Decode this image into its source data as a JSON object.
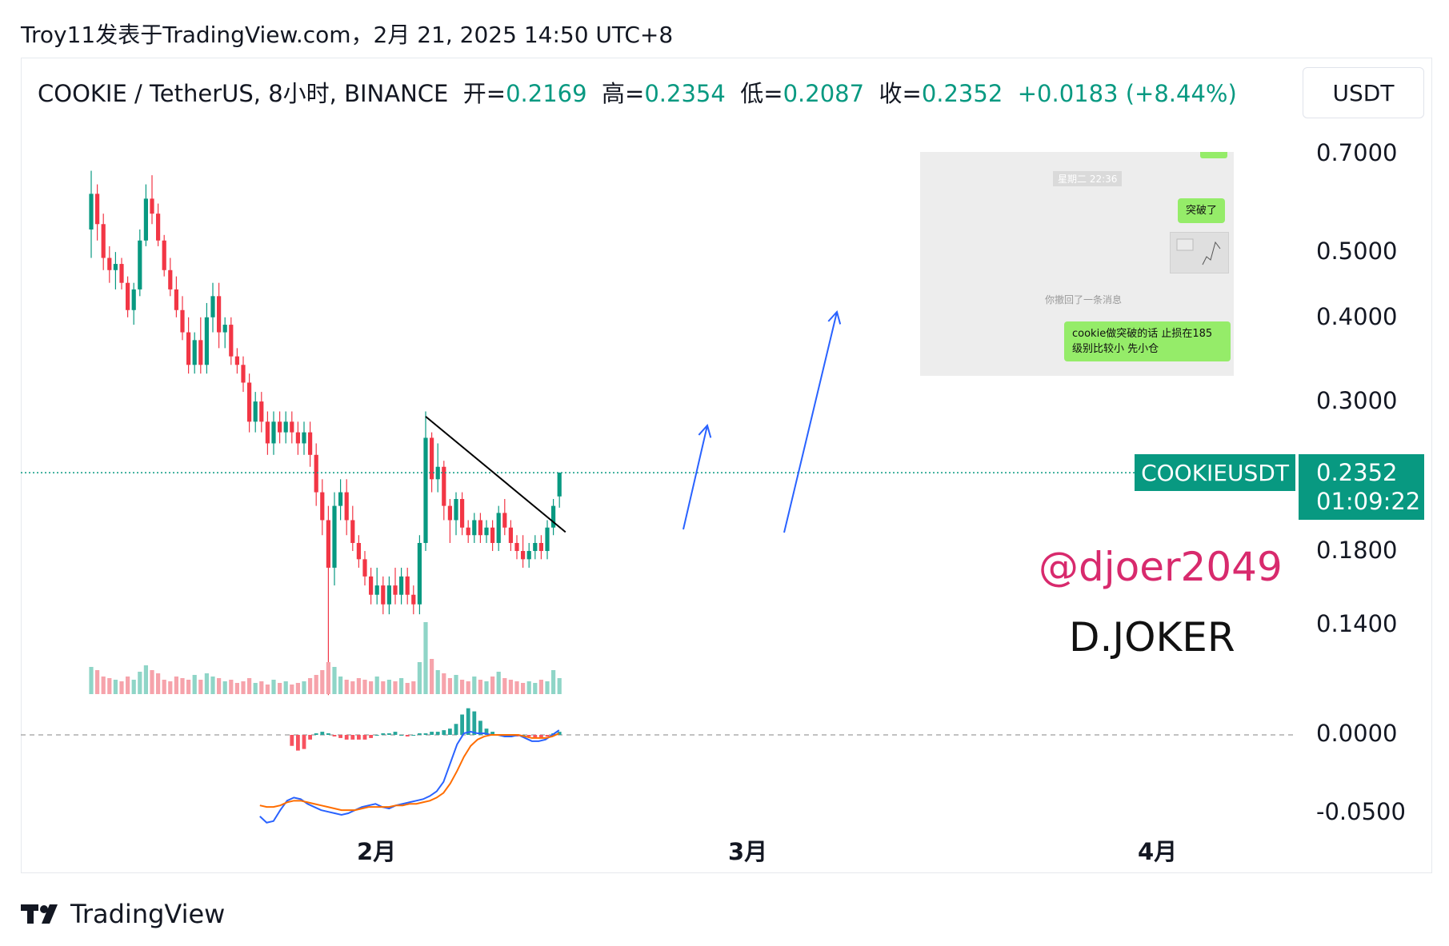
{
  "header": {
    "text": "Troy11发表于TradingView.com，2月 21, 2025 14:50 UTC+8"
  },
  "ohlc": {
    "symbol_text": "COOKIE / TetherUS, 8小时, BINANCE",
    "open_label": "开=",
    "open": "0.2169",
    "high_label": "高=",
    "high": "0.2354",
    "low_label": "低=",
    "low": "0.2087",
    "close_label": "收=",
    "close": "0.2352",
    "change": "+0.0183 (+8.44%)"
  },
  "currency_button": "USDT",
  "symbol_tag": "COOKIEUSDT",
  "price_tag": {
    "price": "0.2352",
    "countdown": "01:09:22"
  },
  "chat": {
    "time": "星期二 22:36",
    "bubble1": "突破了",
    "recall_notice": "你撤回了一条消息",
    "bubble2_line1": "cookie做突破的话 止损在185",
    "bubble2_line2": "级别比较小 先小仓"
  },
  "watermark": {
    "handle": "@djoer2049",
    "name": "D.JOKER"
  },
  "footer": {
    "brand": "TradingView"
  },
  "colors": {
    "up": "#089981",
    "down": "#f23645",
    "macd": "#2962ff",
    "signal": "#ff6d00",
    "handle": "#d82a6d"
  },
  "icons": {
    "logo": "tradingview-logo-icon"
  },
  "chart_data": {
    "type": "candlestick",
    "scale": "log",
    "ylim": [
      0.07,
      0.73
    ],
    "y_ticks": [
      "0.7000",
      "0.5000",
      "0.4000",
      "0.3000",
      "0.1800",
      "0.1400"
    ],
    "x_ticks": [
      "2月",
      "3月",
      "4月"
    ],
    "macd_ticks": [
      "0.0000",
      "-0.0500"
    ],
    "last_price": 0.2352,
    "candles": [
      [
        0.54,
        0.66,
        0.49,
        0.61
      ],
      [
        0.61,
        0.63,
        0.52,
        0.55
      ],
      [
        0.55,
        0.57,
        0.47,
        0.49
      ],
      [
        0.49,
        0.51,
        0.45,
        0.47
      ],
      [
        0.47,
        0.5,
        0.44,
        0.48
      ],
      [
        0.48,
        0.49,
        0.44,
        0.45
      ],
      [
        0.45,
        0.46,
        0.4,
        0.41
      ],
      [
        0.41,
        0.45,
        0.39,
        0.44
      ],
      [
        0.44,
        0.54,
        0.43,
        0.52
      ],
      [
        0.52,
        0.63,
        0.51,
        0.6
      ],
      [
        0.6,
        0.65,
        0.55,
        0.57
      ],
      [
        0.57,
        0.59,
        0.51,
        0.52
      ],
      [
        0.52,
        0.53,
        0.46,
        0.47
      ],
      [
        0.47,
        0.49,
        0.43,
        0.44
      ],
      [
        0.44,
        0.46,
        0.4,
        0.41
      ],
      [
        0.41,
        0.43,
        0.37,
        0.38
      ],
      [
        0.38,
        0.4,
        0.33,
        0.34
      ],
      [
        0.34,
        0.38,
        0.33,
        0.37
      ],
      [
        0.37,
        0.4,
        0.33,
        0.34
      ],
      [
        0.34,
        0.42,
        0.33,
        0.4
      ],
      [
        0.4,
        0.45,
        0.38,
        0.43
      ],
      [
        0.43,
        0.45,
        0.36,
        0.38
      ],
      [
        0.38,
        0.4,
        0.36,
        0.39
      ],
      [
        0.39,
        0.4,
        0.34,
        0.35
      ],
      [
        0.35,
        0.36,
        0.33,
        0.34
      ],
      [
        0.34,
        0.35,
        0.31,
        0.32
      ],
      [
        0.32,
        0.33,
        0.27,
        0.28
      ],
      [
        0.28,
        0.31,
        0.27,
        0.3
      ],
      [
        0.3,
        0.31,
        0.27,
        0.28
      ],
      [
        0.28,
        0.29,
        0.25,
        0.26
      ],
      [
        0.26,
        0.29,
        0.25,
        0.28
      ],
      [
        0.28,
        0.29,
        0.26,
        0.27
      ],
      [
        0.27,
        0.29,
        0.26,
        0.28
      ],
      [
        0.28,
        0.29,
        0.26,
        0.27
      ],
      [
        0.27,
        0.28,
        0.25,
        0.26
      ],
      [
        0.26,
        0.28,
        0.25,
        0.27
      ],
      [
        0.27,
        0.28,
        0.24,
        0.25
      ],
      [
        0.25,
        0.26,
        0.21,
        0.22
      ],
      [
        0.22,
        0.23,
        0.19,
        0.2
      ],
      [
        0.2,
        0.21,
        0.11,
        0.17
      ],
      [
        0.17,
        0.22,
        0.16,
        0.21
      ],
      [
        0.21,
        0.23,
        0.2,
        0.22
      ],
      [
        0.22,
        0.23,
        0.19,
        0.2
      ],
      [
        0.2,
        0.21,
        0.18,
        0.185
      ],
      [
        0.185,
        0.19,
        0.17,
        0.175
      ],
      [
        0.175,
        0.18,
        0.16,
        0.165
      ],
      [
        0.165,
        0.17,
        0.15,
        0.155
      ],
      [
        0.155,
        0.17,
        0.15,
        0.16
      ],
      [
        0.16,
        0.165,
        0.145,
        0.15
      ],
      [
        0.15,
        0.165,
        0.145,
        0.16
      ],
      [
        0.16,
        0.17,
        0.15,
        0.155
      ],
      [
        0.155,
        0.17,
        0.15,
        0.165
      ],
      [
        0.165,
        0.17,
        0.15,
        0.155
      ],
      [
        0.155,
        0.16,
        0.145,
        0.15
      ],
      [
        0.15,
        0.19,
        0.145,
        0.185
      ],
      [
        0.185,
        0.29,
        0.18,
        0.265
      ],
      [
        0.265,
        0.27,
        0.22,
        0.23
      ],
      [
        0.23,
        0.26,
        0.22,
        0.24
      ],
      [
        0.24,
        0.245,
        0.2,
        0.21
      ],
      [
        0.21,
        0.215,
        0.185,
        0.2
      ],
      [
        0.2,
        0.22,
        0.19,
        0.215
      ],
      [
        0.215,
        0.22,
        0.19,
        0.195
      ],
      [
        0.195,
        0.2,
        0.185,
        0.19
      ],
      [
        0.19,
        0.205,
        0.185,
        0.2
      ],
      [
        0.2,
        0.205,
        0.185,
        0.19
      ],
      [
        0.19,
        0.2,
        0.185,
        0.195
      ],
      [
        0.195,
        0.2,
        0.18,
        0.185
      ],
      [
        0.185,
        0.21,
        0.18,
        0.205
      ],
      [
        0.205,
        0.215,
        0.19,
        0.195
      ],
      [
        0.195,
        0.2,
        0.18,
        0.185
      ],
      [
        0.185,
        0.19,
        0.175,
        0.18
      ],
      [
        0.18,
        0.19,
        0.17,
        0.175
      ],
      [
        0.175,
        0.185,
        0.17,
        0.18
      ],
      [
        0.18,
        0.19,
        0.175,
        0.185
      ],
      [
        0.185,
        0.19,
        0.175,
        0.18
      ],
      [
        0.18,
        0.2,
        0.175,
        0.195
      ],
      [
        0.195,
        0.215,
        0.19,
        0.21
      ],
      [
        0.2169,
        0.2354,
        0.2087,
        0.2352
      ]
    ],
    "volumes": [
      34,
      30,
      22,
      20,
      18,
      16,
      22,
      18,
      28,
      36,
      30,
      26,
      18,
      16,
      22,
      20,
      18,
      24,
      18,
      26,
      22,
      20,
      16,
      18,
      14,
      16,
      20,
      14,
      16,
      12,
      18,
      14,
      16,
      12,
      14,
      16,
      20,
      24,
      30,
      40,
      34,
      22,
      18,
      16,
      20,
      18,
      16,
      22,
      16,
      18,
      16,
      20,
      14,
      16,
      40,
      90,
      44,
      30,
      26,
      20,
      24,
      18,
      16,
      22,
      18,
      16,
      22,
      28,
      20,
      18,
      16,
      14,
      16,
      14,
      18,
      16,
      30,
      20
    ],
    "macd": [
      -0.052,
      -0.056,
      -0.055,
      -0.048,
      -0.042,
      -0.04,
      -0.041,
      -0.044,
      -0.046,
      -0.048,
      -0.049,
      -0.05,
      -0.051,
      -0.05,
      -0.048,
      -0.046,
      -0.045,
      -0.044,
      -0.046,
      -0.047,
      -0.045,
      -0.044,
      -0.043,
      -0.042,
      -0.041,
      -0.039,
      -0.036,
      -0.03,
      -0.018,
      -0.006,
      0.001,
      0.002,
      0.001,
      0.001,
      0.0,
      0.0,
      -0.001,
      -0.001,
      0.0,
      -0.002,
      -0.004,
      -0.004,
      -0.003,
      0.0,
      0.003
    ],
    "signal": [
      -0.045,
      -0.046,
      -0.046,
      -0.045,
      -0.043,
      -0.042,
      -0.042,
      -0.043,
      -0.044,
      -0.045,
      -0.046,
      -0.047,
      -0.048,
      -0.048,
      -0.048,
      -0.047,
      -0.046,
      -0.046,
      -0.046,
      -0.046,
      -0.045,
      -0.045,
      -0.044,
      -0.044,
      -0.043,
      -0.042,
      -0.04,
      -0.037,
      -0.031,
      -0.023,
      -0.014,
      -0.007,
      -0.003,
      -0.001,
      0.0,
      0.0,
      0.0,
      0.0,
      0.0,
      -0.001,
      -0.002,
      -0.002,
      -0.002,
      -0.001,
      0.001
    ],
    "trendline": [
      [
        55,
        0.285
      ],
      [
        78,
        0.192
      ]
    ]
  }
}
